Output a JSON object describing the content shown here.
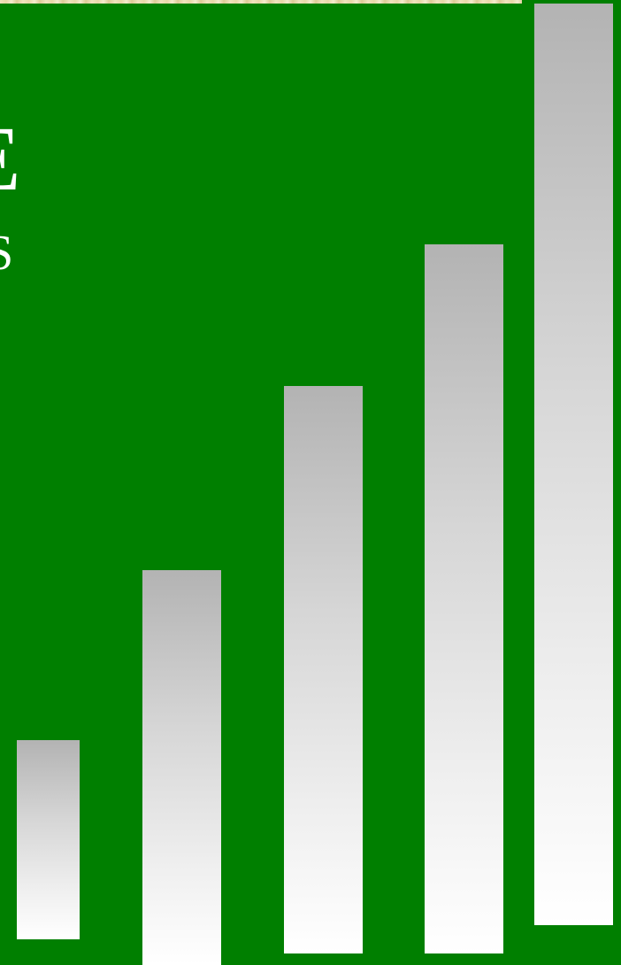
{
  "slide": {
    "background_color": "#007f00",
    "banner_colors": [
      "#efe3bd",
      "#ddcb98"
    ],
    "title_fragment": "E",
    "subtitle_fragment": "S",
    "text_color": "#ffffff"
  },
  "bars": {
    "gradient_colors": [
      "#b3b3b3",
      "#ffffff"
    ],
    "count": 5
  }
}
